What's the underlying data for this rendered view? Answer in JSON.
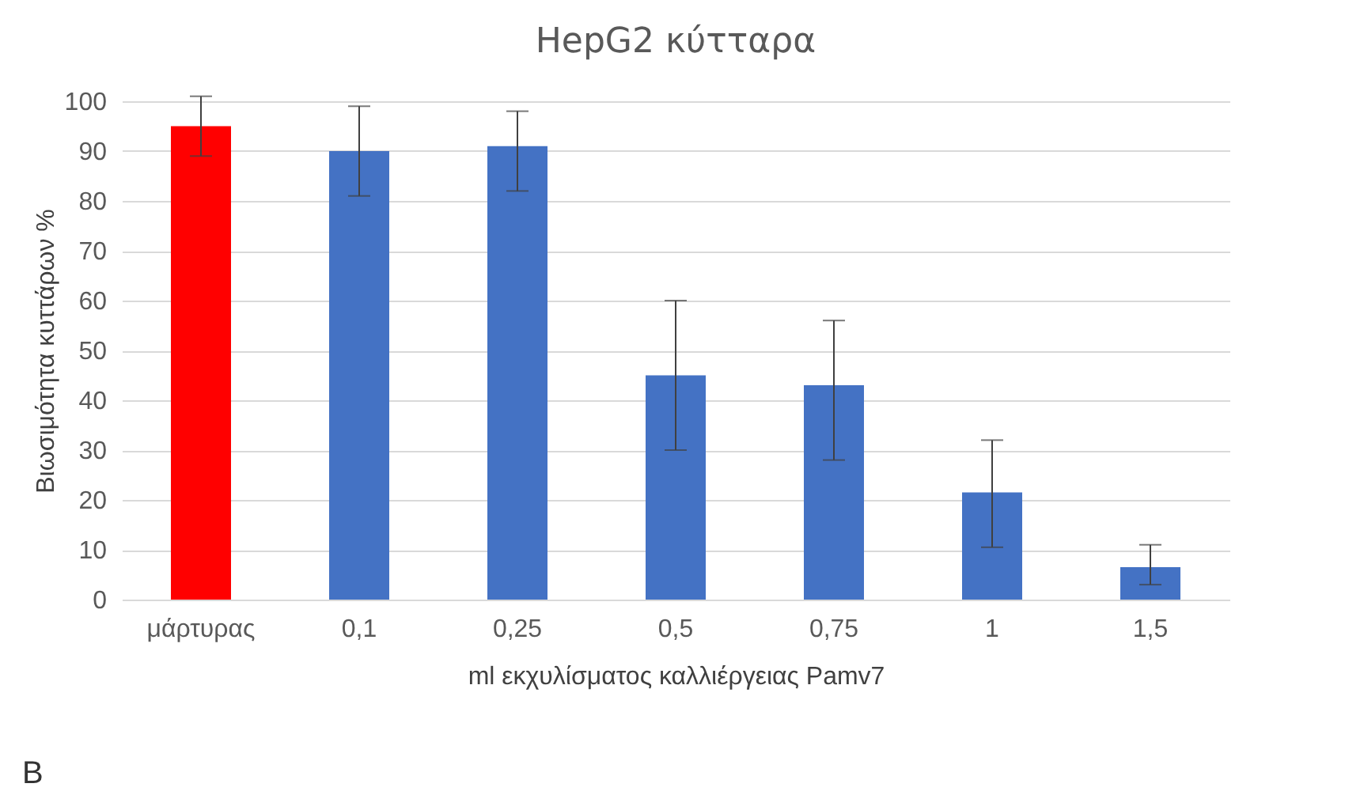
{
  "chart_data": {
    "type": "bar",
    "title": "HepG2 κύτταρα",
    "xlabel": "ml εκχυλίσματος καλλιέργειας Pamv7",
    "ylabel": "Βιωσιμότητα κυττάρων %",
    "categories": [
      "μάρτυρας",
      "0,1",
      "0,25",
      "0,5",
      "0,75",
      "1",
      "1,5"
    ],
    "values": [
      95,
      90,
      91,
      45,
      43,
      21.5,
      6.5
    ],
    "colors": [
      "#ff0000",
      "#4472c4",
      "#4472c4",
      "#4472c4",
      "#4472c4",
      "#4472c4",
      "#4472c4"
    ],
    "errors": [
      6,
      9,
      [
        82,
        98
      ],
      15,
      [
        28,
        56
      ],
      [
        10.5,
        32
      ],
      [
        3,
        11
      ]
    ],
    "ylim": [
      0,
      100
    ],
    "yticks": [
      0,
      10,
      20,
      30,
      40,
      50,
      60,
      70,
      80,
      90,
      100
    ],
    "grid": "y",
    "annotations": [
      "B"
    ]
  }
}
